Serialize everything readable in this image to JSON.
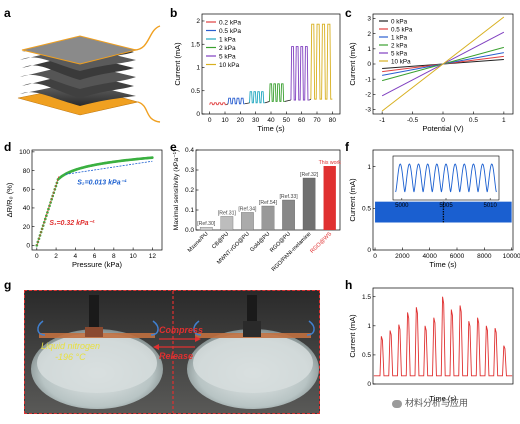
{
  "panels": {
    "a": {
      "label": "a"
    },
    "b": {
      "label": "b"
    },
    "c": {
      "label": "c"
    },
    "d": {
      "label": "d"
    },
    "e": {
      "label": "e"
    },
    "f": {
      "label": "f"
    },
    "g": {
      "label": "g",
      "photo_text": {
        "ln2": "Liquid nitrogen",
        "temp": "-196 °C",
        "compress": "Compress",
        "release": "Release"
      }
    },
    "h": {
      "label": "h"
    }
  },
  "watermark": "材料分析与应用",
  "colors": {
    "p0": "#222222",
    "p02": "#e04040",
    "p05": "#2a5fd0",
    "p1": "#20a8c0",
    "p2": "#3aa030",
    "p5": "#8040c0",
    "p10": "#d8b020",
    "red": "#e03030",
    "blue": "#1a5fd0"
  },
  "chart_data": [
    {
      "id": "b",
      "type": "line",
      "xlabel": "Time (s)",
      "ylabel": "Current (mA)",
      "xlim": [
        -5,
        85
      ],
      "ylim": [
        0,
        2.15
      ],
      "xticks": [
        0,
        10,
        20,
        30,
        40,
        50,
        60,
        70,
        80
      ],
      "yticks": [
        0.0,
        0.5,
        1.0,
        1.5,
        2.0
      ],
      "legend": [
        "0.2 kPa",
        "0.5 kPa",
        "1 kPa",
        "2 kPa",
        "5 kPa",
        "10 kPa"
      ],
      "segments": [
        {
          "name": "0.2 kPa",
          "t0": 0,
          "t1": 11,
          "base": 0.2,
          "peak": 0.24
        },
        {
          "name": "0.5 kPa",
          "t0": 12,
          "t1": 23,
          "base": 0.22,
          "peak": 0.34
        },
        {
          "name": "1 kPa",
          "t0": 26,
          "t1": 36,
          "base": 0.24,
          "peak": 0.48
        },
        {
          "name": "2 kPa",
          "t0": 39,
          "t1": 49,
          "base": 0.27,
          "peak": 0.65
        },
        {
          "name": "5 kPa",
          "t0": 53,
          "t1": 65,
          "base": 0.3,
          "peak": 1.45
        },
        {
          "name": "10 kPa",
          "t0": 66,
          "t1": 80,
          "base": 0.32,
          "peak": 1.93
        }
      ]
    },
    {
      "id": "c",
      "type": "line",
      "xlabel": "Potential (V)",
      "ylabel": "Current (mA)",
      "xlim": [
        -1.15,
        1.15
      ],
      "ylim": [
        -3.3,
        3.3
      ],
      "xticks": [
        -1.0,
        -0.5,
        0.0,
        0.5,
        1.0
      ],
      "yticks": [
        -3,
        -2,
        -1,
        0,
        1,
        2,
        3
      ],
      "series": [
        {
          "name": "0 kPa",
          "slope": 0.3
        },
        {
          "name": "0.5 kPa",
          "slope": 0.5
        },
        {
          "name": "1 kPa",
          "slope": 0.75
        },
        {
          "name": "2 kPa",
          "slope": 1.1
        },
        {
          "name": "5 kPa",
          "slope": 2.1
        },
        {
          "name": "10 kPa",
          "slope": 3.1
        }
      ]
    },
    {
      "id": "d",
      "type": "scatter",
      "xlabel": "Pressure (kPa)",
      "ylabel": "ΔR/R₀ (%)",
      "xlim": [
        -0.5,
        13
      ],
      "ylim": [
        -5,
        102
      ],
      "xticks": [
        0,
        2,
        4,
        6,
        8,
        10,
        12
      ],
      "yticks": [
        0,
        20,
        40,
        60,
        80,
        100
      ],
      "annotations": [
        "S₂=0.013 kPa⁻¹",
        "S₁=0.32 kPa⁻¹"
      ]
    },
    {
      "id": "e",
      "type": "bar",
      "ylabel": "Maximal sensitivity (kPa⁻¹)",
      "ylim": [
        0,
        0.4
      ],
      "yticks": [
        0.0,
        0.1,
        0.2,
        0.3,
        0.4
      ],
      "categories": [
        "Mxene/PU",
        "CB@PU",
        "MWNT-rGO@PU",
        "Gold@PU",
        "RGO@PU",
        "RGO/PANI-melamine",
        "RGO@WS"
      ],
      "values": [
        0.014,
        0.068,
        0.088,
        0.12,
        0.15,
        0.26,
        0.32
      ],
      "bar_labels": [
        "[Ref.30]",
        "[Ref.31]",
        "[Ref.34]",
        "[Ref.54]",
        "[Ref.33]",
        "[Ref.32]",
        "This work"
      ]
    },
    {
      "id": "f",
      "type": "line",
      "xlabel": "Time (s)",
      "ylabel": "Current (mA)",
      "xlim": [
        -150,
        10100
      ],
      "ylim": [
        0,
        1.2
      ],
      "xticks": [
        0,
        2000,
        4000,
        6000,
        8000,
        10000
      ],
      "yticks": [
        0.0,
        0.5,
        1.0
      ],
      "band": [
        0.33,
        0.58
      ],
      "inset": {
        "xlim": [
          4999,
          5011
        ],
        "xticks": [
          5000,
          5005,
          5010
        ],
        "low": 0.58,
        "high": 1.05,
        "cycles": 11
      }
    },
    {
      "id": "h",
      "type": "line",
      "xlabel": "Time (s)",
      "ylabel": "Current (mA)",
      "ylim": [
        0,
        1.65
      ],
      "yticks": [
        0.0,
        0.5,
        1.0,
        1.5
      ],
      "base": 0.14,
      "peaks": [
        0.82,
        0.92,
        1.02,
        1.23,
        1.32,
        1.0,
        1.14,
        1.5,
        1.28,
        1.35,
        1.08,
        1.14,
        1.0,
        0.96,
        0.66
      ]
    }
  ]
}
